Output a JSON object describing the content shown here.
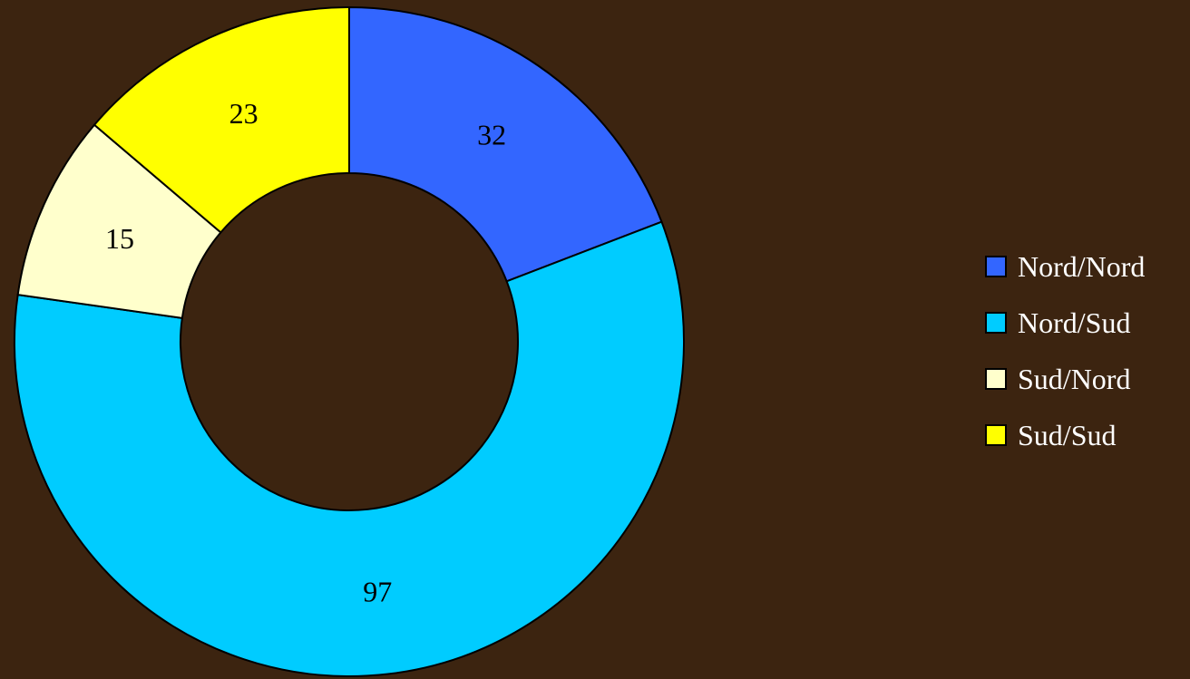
{
  "chart_data": {
    "type": "pie",
    "variant": "donut",
    "categories": [
      "Nord/Nord",
      "Nord/Sud",
      "Sud/Nord",
      "Sud/Sud"
    ],
    "values": [
      32,
      97,
      15,
      23
    ],
    "colors": [
      "#3366ff",
      "#00ccff",
      "#ffffcc",
      "#ffff00"
    ],
    "background": "#3c2410",
    "title": "",
    "data_labels": true,
    "legend": {
      "position": "right",
      "entries": [
        "Nord/Nord",
        "Nord/Sud",
        "Sud/Nord",
        "Sud/Sud"
      ]
    }
  }
}
